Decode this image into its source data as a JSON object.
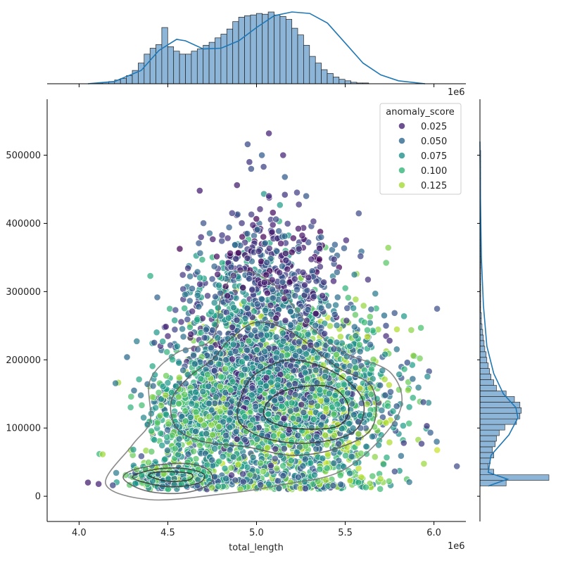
{
  "chart_data": [
    {
      "id": "main-scatter",
      "type": "scatter",
      "xlabel": "total_length",
      "ylabel": "",
      "x_offset_label": "1e6",
      "x_ticks": [
        4.0,
        4.5,
        5.0,
        5.5,
        6.0
      ],
      "x_tick_labels": [
        "4.0",
        "4.5",
        "5.0",
        "5.5",
        "6.0"
      ],
      "y_ticks": [
        0,
        100000,
        200000,
        300000,
        400000,
        500000
      ],
      "y_tick_labels": [
        "0",
        "100000",
        "200000",
        "300000",
        "400000",
        "500000"
      ],
      "xlim": [
        3.82,
        6.18
      ],
      "ylim": [
        -37000,
        582000
      ],
      "hue": "anomaly_score",
      "colormap": "viridis",
      "legend": {
        "title": "anomaly_score",
        "placement": "upper right",
        "entries": [
          "0.025",
          "0.050",
          "0.075",
          "0.100",
          "0.125"
        ],
        "colors": [
          "#482475",
          "#31688e",
          "#21918c",
          "#35b779",
          "#a5db36"
        ]
      },
      "clusters": [
        {
          "cx": 5.2,
          "cy": 135000,
          "sx": 0.28,
          "sy": 75000,
          "share": 0.55,
          "score_range": [
            0.03,
            0.13
          ]
        },
        {
          "cx": 4.95,
          "cy": 220000,
          "sx": 0.22,
          "sy": 75000,
          "share": 0.2,
          "score_range": [
            0.01,
            0.09
          ]
        },
        {
          "cx": 4.55,
          "cy": 28000,
          "sx": 0.12,
          "sy": 9000,
          "share": 0.09,
          "score_range": [
            0.03,
            0.12
          ]
        },
        {
          "cx": 5.1,
          "cy": 340000,
          "sx": 0.2,
          "sy": 40000,
          "share": 0.06,
          "score_range": [
            0.0,
            0.05
          ]
        },
        {
          "cx": 4.65,
          "cy": 110000,
          "sx": 0.15,
          "sy": 40000,
          "share": 0.1,
          "score_range": [
            0.04,
            0.12
          ]
        }
      ],
      "outliers": [
        [
          4.05,
          20000
        ],
        [
          4.11,
          18000
        ],
        [
          4.19,
          16000
        ],
        [
          4.27,
          204000
        ],
        [
          4.31,
          155000
        ],
        [
          4.68,
          448000
        ],
        [
          4.95,
          516000
        ],
        [
          4.96,
          490000
        ],
        [
          4.97,
          480000
        ],
        [
          5.07,
          532000
        ],
        [
          5.03,
          500000
        ],
        [
          5.04,
          483000
        ],
        [
          5.16,
          468000
        ],
        [
          5.16,
          442000
        ],
        [
          5.07,
          440000
        ],
        [
          4.89,
          456000
        ],
        [
          5.28,
          440000
        ],
        [
          5.72,
          265000
        ],
        [
          5.73,
          250000
        ],
        [
          5.75,
          228000
        ],
        [
          5.85,
          196000
        ],
        [
          5.88,
          172000
        ],
        [
          5.94,
          138000
        ],
        [
          5.96,
          103000
        ],
        [
          5.93,
          77000
        ],
        [
          5.83,
          78000
        ],
        [
          5.79,
          132000
        ],
        [
          5.15,
          500000
        ]
      ],
      "kde_contours": [
        [
          [
            4.25,
            26000
          ],
          [
            4.35,
            10000
          ],
          [
            4.5,
            4000
          ],
          [
            4.65,
            8000
          ],
          [
            4.75,
            22000
          ],
          [
            4.72,
            40000
          ],
          [
            4.6,
            48000
          ],
          [
            4.45,
            46000
          ],
          [
            4.3,
            38000
          ]
        ],
        [
          [
            4.3,
            28000
          ],
          [
            4.42,
            17000
          ],
          [
            4.55,
            14000
          ],
          [
            4.68,
            20000
          ],
          [
            4.7,
            33000
          ],
          [
            4.58,
            41000
          ],
          [
            4.42,
            39000
          ]
        ],
        [
          [
            4.4,
            29000
          ],
          [
            4.5,
            22000
          ],
          [
            4.62,
            24000
          ],
          [
            4.63,
            33000
          ],
          [
            4.5,
            36000
          ],
          [
            4.41,
            34000
          ]
        ],
        [
          [
            4.15,
            18000
          ],
          [
            4.4,
            -5000
          ],
          [
            4.8,
            3000
          ],
          [
            5.1,
            15000
          ],
          [
            5.5,
            40000
          ],
          [
            5.8,
            120000
          ],
          [
            5.76,
            180000
          ],
          [
            5.5,
            210000
          ],
          [
            5.3,
            250000
          ],
          [
            5.1,
            310000
          ],
          [
            4.9,
            330000
          ],
          [
            4.8,
            290000
          ],
          [
            4.75,
            230000
          ],
          [
            4.55,
            210000
          ],
          [
            4.4,
            170000
          ],
          [
            4.4,
            110000
          ],
          [
            4.3,
            75000
          ]
        ],
        [
          [
            4.52,
            140000
          ],
          [
            4.55,
            100000
          ],
          [
            4.7,
            80000
          ],
          [
            4.95,
            72000
          ],
          [
            5.2,
            60000
          ],
          [
            5.45,
            70000
          ],
          [
            5.65,
            100000
          ],
          [
            5.65,
            160000
          ],
          [
            5.45,
            190000
          ],
          [
            5.2,
            240000
          ],
          [
            5.0,
            255000
          ],
          [
            4.85,
            230000
          ],
          [
            4.75,
            200000
          ],
          [
            4.62,
            175000
          ]
        ],
        [
          [
            4.9,
            110000
          ],
          [
            5.05,
            85000
          ],
          [
            5.3,
            78000
          ],
          [
            5.55,
            95000
          ],
          [
            5.6,
            140000
          ],
          [
            5.45,
            180000
          ],
          [
            5.2,
            200000
          ],
          [
            5.0,
            180000
          ],
          [
            4.92,
            150000
          ]
        ],
        [
          [
            5.05,
            115000
          ],
          [
            5.2,
            100000
          ],
          [
            5.45,
            102000
          ],
          [
            5.52,
            130000
          ],
          [
            5.42,
            160000
          ],
          [
            5.2,
            158000
          ],
          [
            5.07,
            140000
          ]
        ]
      ]
    },
    {
      "id": "top-marginal",
      "type": "bar",
      "orientation": "vertical",
      "x_offset_label": "1e6",
      "bin_start": 4.1,
      "bin_width": 0.0333,
      "values": [
        1,
        2,
        3,
        5,
        7,
        11,
        18,
        28,
        40,
        48,
        53,
        76,
        50,
        44,
        40,
        40,
        44,
        47,
        52,
        56,
        62,
        67,
        74,
        84,
        90,
        92,
        93,
        95,
        94,
        97,
        93,
        91,
        87,
        75,
        66,
        52,
        37,
        28,
        19,
        14,
        9,
        6,
        4,
        2,
        1,
        1
      ],
      "kde": [
        [
          4.05,
          0
        ],
        [
          4.2,
          3
        ],
        [
          4.35,
          18
        ],
        [
          4.45,
          45
        ],
        [
          4.55,
          60
        ],
        [
          4.6,
          58
        ],
        [
          4.7,
          47
        ],
        [
          4.8,
          48
        ],
        [
          4.9,
          58
        ],
        [
          5.0,
          76
        ],
        [
          5.1,
          92
        ],
        [
          5.2,
          97
        ],
        [
          5.3,
          95
        ],
        [
          5.4,
          82
        ],
        [
          5.5,
          55
        ],
        [
          5.6,
          28
        ],
        [
          5.7,
          12
        ],
        [
          5.8,
          4
        ],
        [
          5.95,
          0
        ]
      ]
    },
    {
      "id": "right-marginal",
      "type": "bar",
      "orientation": "horizontal",
      "bin_start": 15000,
      "bin_width": 8200,
      "values": [
        38,
        100,
        20,
        12,
        15,
        20,
        18,
        22,
        24,
        28,
        36,
        53,
        58,
        60,
        58,
        50,
        38,
        24,
        20,
        16,
        14,
        12,
        10,
        9,
        7,
        6,
        5,
        4,
        3,
        2,
        2,
        1,
        1,
        1,
        1,
        1,
        1,
        1,
        1,
        1,
        1,
        1,
        1,
        1,
        1,
        1,
        1,
        1,
        1,
        1,
        1,
        1,
        1,
        1,
        1,
        1,
        1,
        1,
        1,
        1
      ],
      "kde": [
        [
          15000,
          12
        ],
        [
          25000,
          40
        ],
        [
          35000,
          12
        ],
        [
          60000,
          16
        ],
        [
          90000,
          42
        ],
        [
          115000,
          55
        ],
        [
          130000,
          52
        ],
        [
          150000,
          34
        ],
        [
          180000,
          20
        ],
        [
          220000,
          10
        ],
        [
          280000,
          5
        ],
        [
          350000,
          2
        ],
        [
          450000,
          0.5
        ],
        [
          520000,
          0
        ]
      ]
    }
  ]
}
